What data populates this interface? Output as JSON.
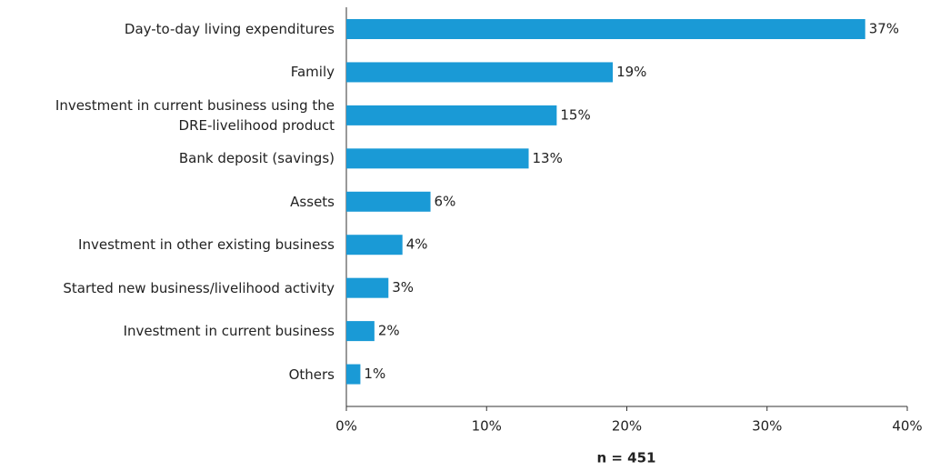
{
  "chart_data": {
    "type": "bar",
    "orientation": "horizontal",
    "categories": [
      "Day-to-day living expenditures",
      "Family",
      "Investment in current business using the\nDRE-livelihood product",
      "Bank deposit (savings)",
      "Assets",
      "Investment in other existing business",
      "Started new business/livelihood activity",
      "Investment in current business",
      "Others"
    ],
    "values": [
      37,
      19,
      15,
      13,
      6,
      4,
      3,
      2,
      1
    ],
    "value_labels": [
      "37%",
      "19%",
      "15%",
      "13%",
      "6%",
      "4%",
      "3%",
      "2%",
      "1%"
    ],
    "color": "#1a9ad6",
    "xlim": [
      0,
      40
    ],
    "xticks": [
      {
        "value": 0,
        "label": "0%"
      },
      {
        "value": 10,
        "label": "10%"
      },
      {
        "value": 20,
        "label": "20%"
      },
      {
        "value": 30,
        "label": "30%"
      },
      {
        "value": 40,
        "label": "40%"
      }
    ],
    "x_label": "n = 451",
    "grid": false
  }
}
